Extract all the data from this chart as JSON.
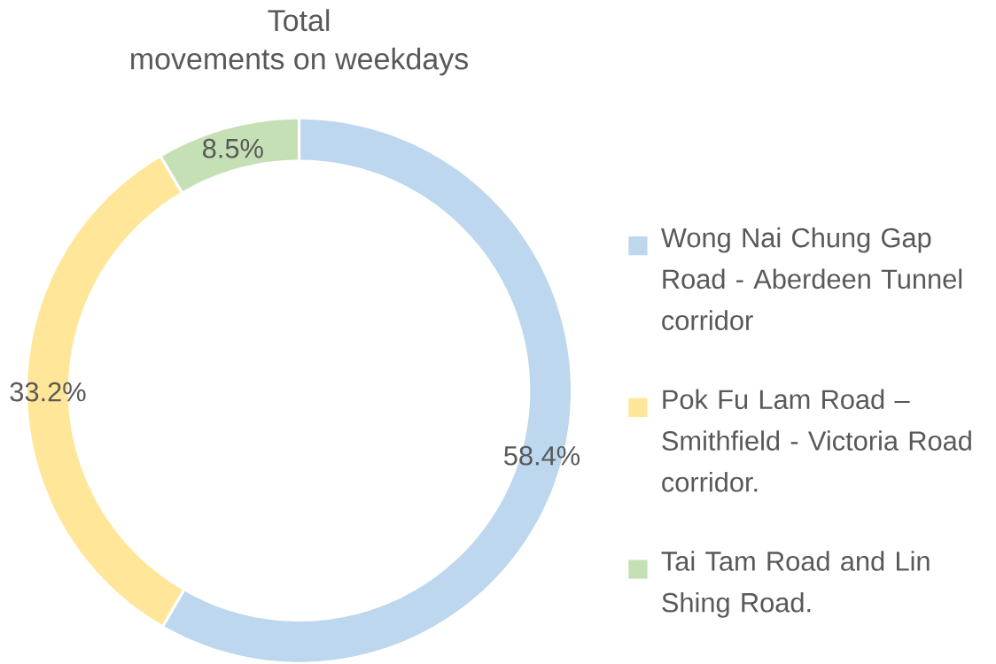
{
  "chart_data": {
    "type": "donut",
    "title": "Total",
    "subtitle": "movements on weekdays",
    "categories": [
      "Wong Nai Chung Gap Road - Aberdeen Tunnel corridor",
      "Pok Fu Lam Road – Smithfield - Victoria Road corridor.",
      "Tai Tam Road and Lin Shing Road."
    ],
    "values": [
      58.4,
      33.2,
      8.5
    ],
    "value_labels": [
      "58.4%",
      "33.2%",
      "8.5%"
    ],
    "colors": [
      "#bdd7ee",
      "#ffe699",
      "#c5e0b4"
    ],
    "legend": "right"
  }
}
